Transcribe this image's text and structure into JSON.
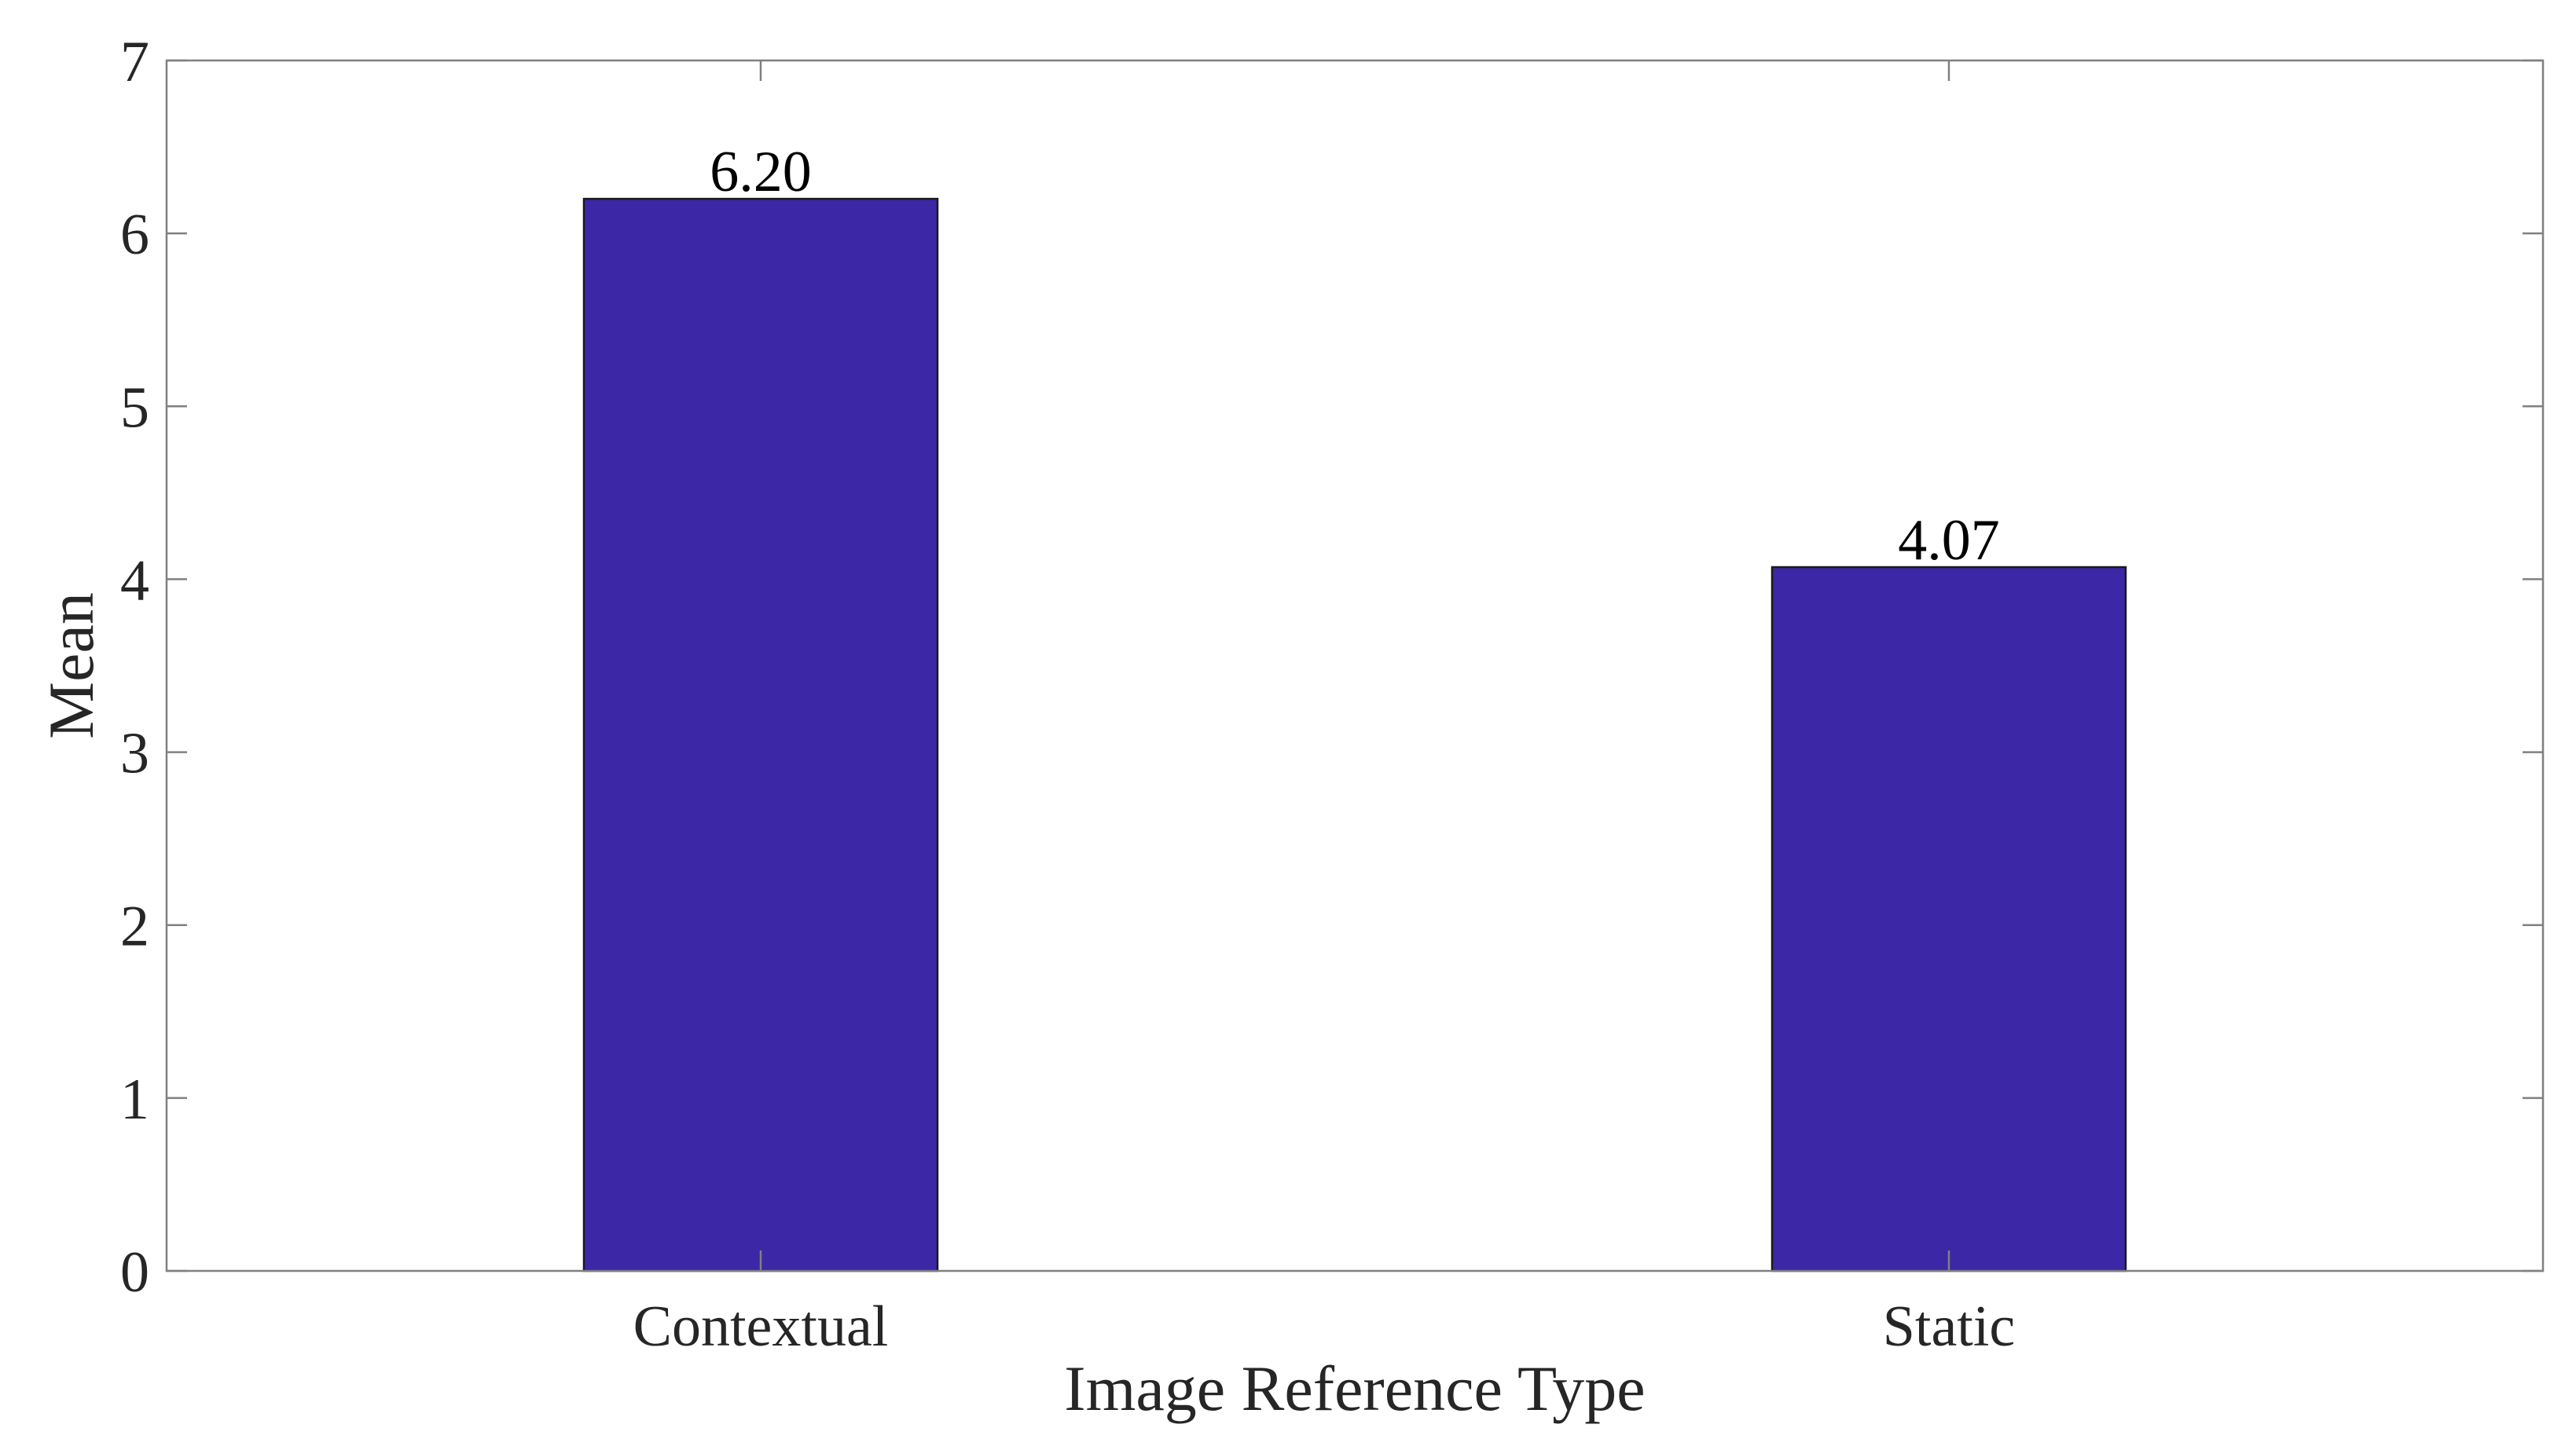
{
  "chart_data": {
    "type": "bar",
    "title": "",
    "xlabel": "Image Reference Type",
    "ylabel": "Mean",
    "categories": [
      "Contextual",
      "Static"
    ],
    "values": [
      6.2,
      4.07
    ],
    "data_labels": [
      "6.20",
      "4.07"
    ],
    "ylim": [
      0,
      7
    ],
    "yticks": [
      "0",
      "1",
      "2",
      "3",
      "4",
      "5",
      "6",
      "7"
    ],
    "bar_color": "#3C27A6",
    "grid": false,
    "legend": "none"
  }
}
